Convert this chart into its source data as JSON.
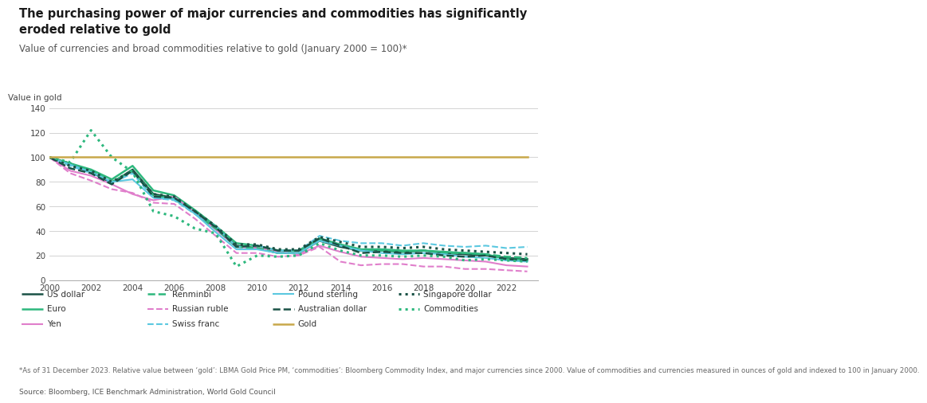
{
  "title": "The purchasing power of major currencies and commodities has significantly\neroded relative to gold",
  "subtitle": "Value of currencies and broad commodities relative to gold (January 2000 = 100)*",
  "ylabel": "Value in gold",
  "footnote": "*As of 31 December 2023. Relative value between ‘gold’: LBMA Gold Price PM, ‘commodities’: Bloomberg Commodity Index, and major currencies since 2000. Value of commodities and currencies measured in ounces of gold and indexed to 100 in January 2000.",
  "source": "Source: Bloomberg, ICE Benchmark Administration, World Gold Council",
  "xlim": [
    2000,
    2023.5
  ],
  "ylim": [
    0,
    140
  ],
  "yticks": [
    0,
    20,
    40,
    60,
    80,
    100,
    120,
    140
  ],
  "xticks": [
    2000,
    2002,
    2004,
    2006,
    2008,
    2010,
    2012,
    2014,
    2016,
    2018,
    2020,
    2022
  ],
  "series": {
    "US dollar": {
      "color": "#1a5246",
      "linestyle": "solid",
      "linewidth": 1.8,
      "data": {
        "2000": 100,
        "2001": 95,
        "2002": 88,
        "2003": 79,
        "2004": 90,
        "2005": 70,
        "2006": 67,
        "2007": 55,
        "2008": 42,
        "2009": 28,
        "2010": 26,
        "2011": 22,
        "2012": 22,
        "2013": 32,
        "2014": 27,
        "2015": 24,
        "2016": 24,
        "2017": 23,
        "2018": 24,
        "2019": 22,
        "2020": 21,
        "2021": 20,
        "2022": 18,
        "2023": 17
      }
    },
    "Euro": {
      "color": "#2db87d",
      "linestyle": "solid",
      "linewidth": 1.8,
      "data": {
        "2000": 100,
        "2001": 95,
        "2002": 90,
        "2003": 82,
        "2004": 93,
        "2005": 73,
        "2006": 69,
        "2007": 57,
        "2008": 44,
        "2009": 30,
        "2010": 28,
        "2011": 24,
        "2012": 24,
        "2013": 34,
        "2014": 29,
        "2015": 25,
        "2016": 25,
        "2017": 24,
        "2018": 24,
        "2019": 23,
        "2020": 22,
        "2021": 21,
        "2022": 17,
        "2023": 16
      }
    },
    "Yen": {
      "color": "#e07ecb",
      "linestyle": "solid",
      "linewidth": 1.5,
      "data": {
        "2000": 100,
        "2001": 89,
        "2002": 85,
        "2003": 78,
        "2004": 70,
        "2005": 65,
        "2006": 68,
        "2007": 55,
        "2008": 41,
        "2009": 27,
        "2010": 26,
        "2011": 23,
        "2012": 21,
        "2013": 28,
        "2014": 23,
        "2015": 19,
        "2016": 18,
        "2017": 17,
        "2018": 18,
        "2019": 17,
        "2020": 16,
        "2021": 15,
        "2022": 12,
        "2023": 11
      }
    },
    "Renminbi": {
      "color": "#2db87d",
      "linestyle": "dashed",
      "linewidth": 1.8,
      "data": {
        "2000": 100,
        "2001": 94,
        "2002": 89,
        "2003": 80,
        "2004": 89,
        "2005": 69,
        "2006": 66,
        "2007": 54,
        "2008": 42,
        "2009": 27,
        "2010": 26,
        "2011": 22,
        "2012": 22,
        "2013": 33,
        "2014": 28,
        "2015": 24,
        "2016": 24,
        "2017": 23,
        "2018": 24,
        "2019": 22,
        "2020": 22,
        "2021": 21,
        "2022": 19,
        "2023": 18
      }
    },
    "Russian ruble": {
      "color": "#e07ecb",
      "linestyle": "dashed",
      "linewidth": 1.5,
      "data": {
        "2000": 100,
        "2001": 87,
        "2002": 81,
        "2003": 74,
        "2004": 71,
        "2005": 63,
        "2006": 62,
        "2007": 50,
        "2008": 36,
        "2009": 22,
        "2010": 22,
        "2011": 19,
        "2012": 20,
        "2013": 27,
        "2014": 15,
        "2015": 12,
        "2016": 13,
        "2017": 13,
        "2018": 11,
        "2019": 11,
        "2020": 9,
        "2021": 9,
        "2022": 8,
        "2023": 7
      }
    },
    "Swiss franc": {
      "color": "#5bc8e0",
      "linestyle": "dashed",
      "linewidth": 1.5,
      "data": {
        "2000": 100,
        "2001": 93,
        "2002": 87,
        "2003": 79,
        "2004": 87,
        "2005": 67,
        "2006": 65,
        "2007": 54,
        "2008": 44,
        "2009": 27,
        "2010": 28,
        "2011": 24,
        "2012": 24,
        "2013": 36,
        "2014": 32,
        "2015": 30,
        "2016": 30,
        "2017": 28,
        "2018": 30,
        "2019": 28,
        "2020": 27,
        "2021": 28,
        "2022": 26,
        "2023": 27
      }
    },
    "Pound sterling": {
      "color": "#5bc8e0",
      "linestyle": "solid",
      "linewidth": 1.5,
      "data": {
        "2000": 100,
        "2001": 94,
        "2002": 88,
        "2003": 80,
        "2004": 82,
        "2005": 67,
        "2006": 66,
        "2007": 54,
        "2008": 39,
        "2009": 25,
        "2010": 25,
        "2011": 22,
        "2012": 22,
        "2013": 32,
        "2014": 28,
        "2015": 24,
        "2016": 22,
        "2017": 21,
        "2018": 22,
        "2019": 21,
        "2020": 19,
        "2021": 18,
        "2022": 16,
        "2023": 15
      }
    },
    "Australian dollar": {
      "color": "#1a5246",
      "linestyle": "dashed",
      "linewidth": 1.8,
      "data": {
        "2000": 100,
        "2001": 91,
        "2002": 87,
        "2003": 78,
        "2004": 89,
        "2005": 68,
        "2006": 67,
        "2007": 56,
        "2008": 43,
        "2009": 27,
        "2010": 28,
        "2011": 24,
        "2012": 24,
        "2013": 34,
        "2014": 28,
        "2015": 22,
        "2016": 23,
        "2017": 22,
        "2018": 22,
        "2019": 20,
        "2020": 19,
        "2021": 20,
        "2022": 17,
        "2023": 16
      }
    },
    "Singapore dollar": {
      "color": "#1a5246",
      "linestyle": "dotted",
      "linewidth": 2.2,
      "data": {
        "2000": 100,
        "2001": 93,
        "2002": 89,
        "2003": 80,
        "2004": 89,
        "2005": 70,
        "2006": 68,
        "2007": 56,
        "2008": 44,
        "2009": 29,
        "2010": 29,
        "2011": 25,
        "2012": 25,
        "2013": 35,
        "2014": 31,
        "2015": 27,
        "2016": 27,
        "2017": 26,
        "2018": 27,
        "2019": 25,
        "2020": 24,
        "2021": 23,
        "2022": 22,
        "2023": 21
      }
    },
    "Commodities": {
      "color": "#2db87d",
      "linestyle": "dotted",
      "linewidth": 2.2,
      "data": {
        "2000": 100,
        "2001": 96,
        "2002": 122,
        "2003": 100,
        "2004": 88,
        "2005": 56,
        "2006": 52,
        "2007": 42,
        "2008": 38,
        "2009": 11,
        "2010": 20,
        "2011": 19,
        "2012": 20,
        "2013": 30,
        "2014": 24,
        "2015": 20,
        "2016": 20,
        "2017": 19,
        "2018": 20,
        "2019": 19,
        "2020": 16,
        "2021": 17,
        "2022": 16,
        "2023": 15
      }
    },
    "Gold": {
      "color": "#c8a84b",
      "linestyle": "solid",
      "linewidth": 1.8,
      "data": {
        "2000": 100,
        "2001": 100,
        "2002": 100,
        "2003": 100,
        "2004": 100,
        "2005": 100,
        "2006": 100,
        "2007": 100,
        "2008": 100,
        "2009": 100,
        "2010": 100,
        "2011": 100,
        "2012": 100,
        "2013": 100,
        "2014": 100,
        "2015": 100,
        "2016": 100,
        "2017": 100,
        "2018": 100,
        "2019": 100,
        "2020": 100,
        "2021": 100,
        "2022": 100,
        "2023": 100
      }
    }
  },
  "legend": [
    {
      "label": "US dollar",
      "color": "#1a5246",
      "linestyle": "solid",
      "linewidth": 1.8
    },
    {
      "label": "Renminbi",
      "color": "#2db87d",
      "linestyle": "dashed",
      "linewidth": 1.8
    },
    {
      "label": "Pound sterling",
      "color": "#5bc8e0",
      "linestyle": "solid",
      "linewidth": 1.5
    },
    {
      "label": "Singapore dollar",
      "color": "#1a5246",
      "linestyle": "dotted",
      "linewidth": 2.2
    },
    {
      "label": "Euro",
      "color": "#2db87d",
      "linestyle": "solid",
      "linewidth": 1.8
    },
    {
      "label": "Russian ruble",
      "color": "#e07ecb",
      "linestyle": "dashed",
      "linewidth": 1.5
    },
    {
      "label": "Australian dollar",
      "color": "#1a5246",
      "linestyle": "dashed",
      "linewidth": 1.8
    },
    {
      "label": "Commodities",
      "color": "#2db87d",
      "linestyle": "dotted",
      "linewidth": 2.2
    },
    {
      "label": "Yen",
      "color": "#e07ecb",
      "linestyle": "solid",
      "linewidth": 1.5
    },
    {
      "label": "Swiss franc",
      "color": "#5bc8e0",
      "linestyle": "dashed",
      "linewidth": 1.5
    },
    {
      "label": "Gold",
      "color": "#c8a84b",
      "linestyle": "solid",
      "linewidth": 1.8
    }
  ],
  "bg_color": "#ffffff",
  "title_fontsize": 10.5,
  "subtitle_fontsize": 8.5,
  "tick_fontsize": 7.5,
  "ylabel_fontsize": 7.5,
  "legend_fontsize": 7.5,
  "footnote_fontsize": 6.2,
  "source_fontsize": 6.5
}
